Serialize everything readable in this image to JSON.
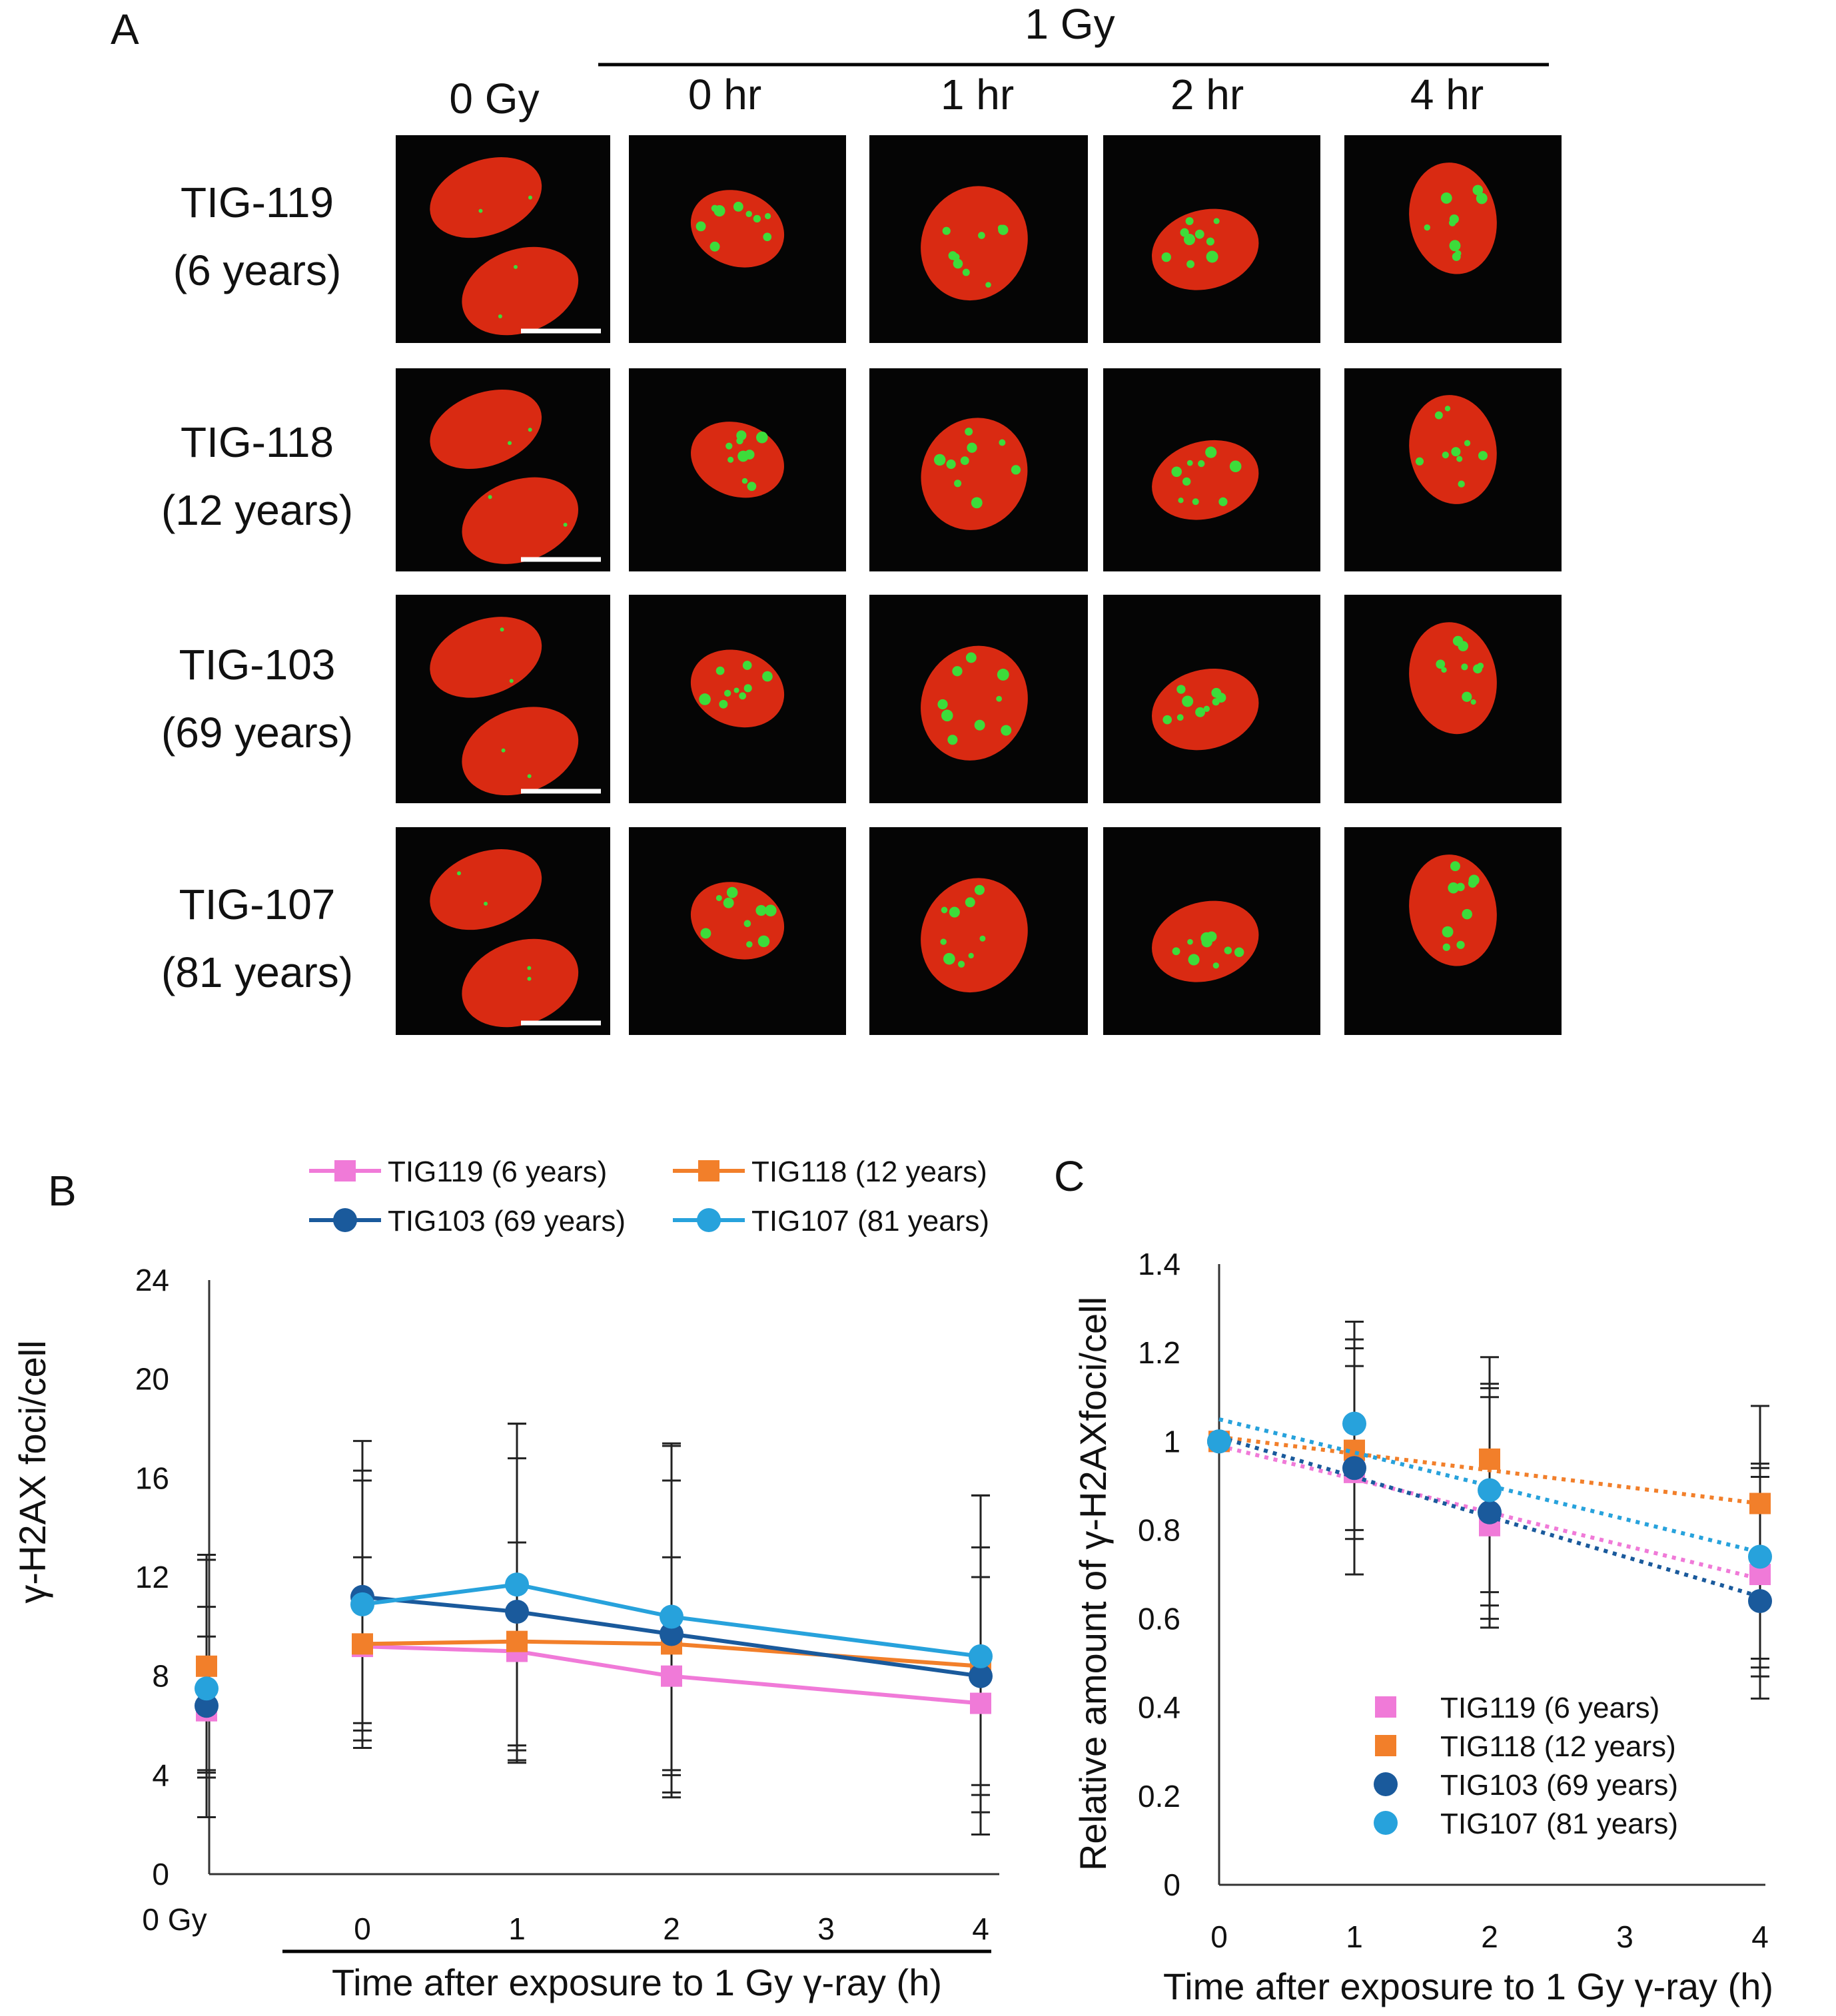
{
  "panel_a": {
    "label": "A",
    "header_group": "1 Gy",
    "column_headers": [
      "0 Gy",
      "0 hr",
      "1 hr",
      "2 hr",
      "4 hr"
    ],
    "rows": [
      {
        "name": "TIG-119",
        "age": "(6 years)"
      },
      {
        "name": "TIG-118",
        "age": "(12 years)"
      },
      {
        "name": "TIG-103",
        "age": "(69 years)"
      },
      {
        "name": "TIG-107",
        "age": "(81 years)"
      }
    ],
    "colors": {
      "nucleus": "#d92a12",
      "foci": "#3ddc3a",
      "background": "#050505"
    }
  },
  "chart_data": [
    {
      "panel": "B",
      "type": "line",
      "ylabel": "γ-H2AX foci/cell",
      "xlabel": "Time after exposure to 1 Gy γ-ray (h)",
      "ylim": [
        0,
        24
      ],
      "yticks": [
        0,
        4,
        8,
        12,
        16,
        20,
        24
      ],
      "xticks": [
        0,
        1,
        2,
        3,
        4
      ],
      "control_label": "0 Gy",
      "legend_position": "top",
      "series": [
        {
          "name": "TIG119 (6 years)",
          "color": "#f07ad8",
          "marker": "square",
          "control": 6.6,
          "control_err": [
            2.3,
            12.7
          ],
          "x": [
            0,
            1,
            2,
            4
          ],
          "y": [
            9.2,
            9.0,
            8.0,
            6.9
          ],
          "err_low": [
            5.1,
            4.5,
            3.1,
            1.6
          ],
          "err_high": [
            12.8,
            13.4,
            12.8,
            12.0
          ]
        },
        {
          "name": "TIG118 (12 years)",
          "color": "#f27f2a",
          "marker": "square",
          "control": 8.4,
          "control_err": [
            4.2,
            12.9
          ],
          "x": [
            0,
            1,
            2,
            4
          ],
          "y": [
            9.3,
            9.4,
            9.3,
            8.4
          ],
          "err_low": [
            5.4,
            4.6,
            3.3,
            2.5
          ],
          "err_high": [
            17.5,
            18.2,
            17.3,
            15.3
          ]
        },
        {
          "name": "TIG103 (69 years)",
          "color": "#1a5a9c",
          "marker": "circle",
          "control": 6.8,
          "control_err": [
            3.9,
            9.6
          ],
          "x": [
            0,
            1,
            2,
            4
          ],
          "y": [
            11.2,
            10.6,
            9.7,
            8.0
          ],
          "err_low": [
            5.8,
            5.2,
            4.2,
            3.2
          ],
          "err_high": [
            16.3,
            16.8,
            15.9,
            13.2
          ]
        },
        {
          "name": "TIG107 (81 years)",
          "color": "#27a2dc",
          "marker": "circle",
          "control": 7.5,
          "control_err": [
            4.1,
            10.8
          ],
          "x": [
            0,
            1,
            2,
            4
          ],
          "y": [
            10.9,
            11.7,
            10.4,
            8.8
          ],
          "err_low": [
            6.1,
            5.0,
            4.0,
            3.6
          ],
          "err_high": [
            15.9,
            18.2,
            17.4,
            15.3
          ]
        }
      ]
    },
    {
      "panel": "C",
      "type": "scatter",
      "ylabel": "Relative amount of γ-H2AXfoci/cell",
      "xlabel": "Time after exposure to 1 Gy γ-ray (h)",
      "ylim": [
        0,
        1.4
      ],
      "yticks": [
        "0",
        "0.2",
        "0.4",
        "0.6",
        "0.8",
        "1",
        "1.2",
        "1.4"
      ],
      "xticks": [
        0,
        1,
        2,
        3,
        4
      ],
      "trendlines": "linear, dotted",
      "legend_position": "bottom-right",
      "series": [
        {
          "name": "TIG119 (6 years)",
          "color": "#f07ad8",
          "marker": "square",
          "x": [
            0,
            1,
            2,
            4
          ],
          "y": [
            1.0,
            0.93,
            0.81,
            0.7
          ],
          "err_low": [
            1.0,
            0.7,
            0.58,
            0.42
          ],
          "err_high": [
            1.0,
            1.21,
            1.12,
            0.95
          ],
          "trend": [
            0.99,
            0.69
          ]
        },
        {
          "name": "TIG118 (12 years)",
          "color": "#f27f2a",
          "marker": "square",
          "x": [
            0,
            1,
            2,
            4
          ],
          "y": [
            1.0,
            0.98,
            0.96,
            0.86
          ],
          "err_low": [
            1.0,
            0.8,
            0.66,
            0.51
          ],
          "err_high": [
            1.0,
            1.27,
            1.19,
            1.08
          ],
          "trend": [
            1.01,
            0.86
          ]
        },
        {
          "name": "TIG103 (69 years)",
          "color": "#1a5a9c",
          "marker": "circle",
          "x": [
            0,
            1,
            2,
            4
          ],
          "y": [
            1.0,
            0.94,
            0.84,
            0.64
          ],
          "err_low": [
            1.0,
            0.7,
            0.6,
            0.47
          ],
          "err_high": [
            1.0,
            1.17,
            1.1,
            0.94
          ],
          "trend": [
            1.01,
            0.65
          ]
        },
        {
          "name": "TIG107 (81 years)",
          "color": "#27a2dc",
          "marker": "circle",
          "x": [
            0,
            1,
            2,
            4
          ],
          "y": [
            1.0,
            1.04,
            0.89,
            0.74
          ],
          "err_low": [
            1.0,
            0.78,
            0.63,
            0.49
          ],
          "err_high": [
            1.0,
            1.23,
            1.13,
            0.92
          ],
          "trend": [
            1.05,
            0.75
          ]
        }
      ]
    }
  ]
}
